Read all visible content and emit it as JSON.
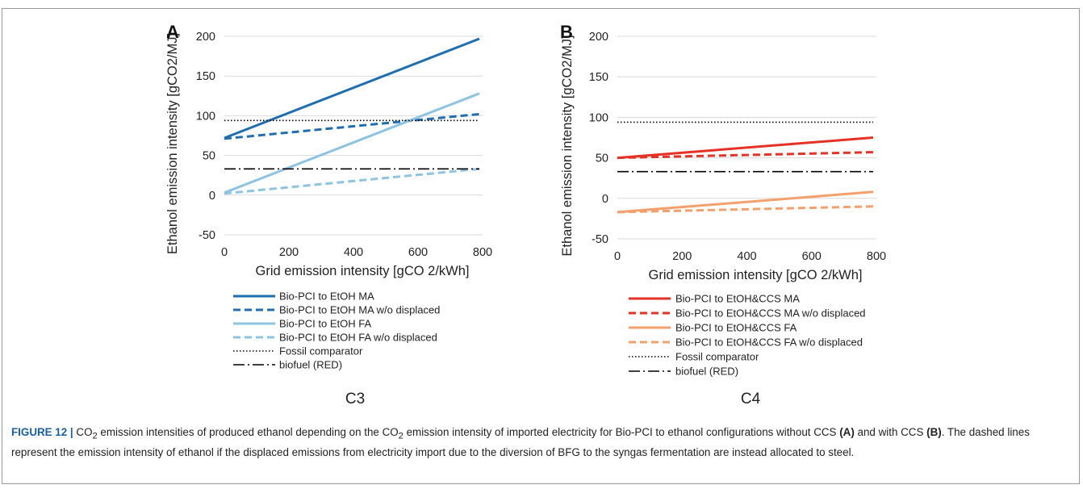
{
  "chart_data": [
    {
      "type": "line",
      "panel_letter": "A",
      "panel_label": "C3",
      "xlabel": "Grid emission intensity [gCO 2/kWh]",
      "ylabel": "Ethanol emission intensity [gCO2/MJ]",
      "xlim": [
        0,
        800
      ],
      "ylim": [
        -50,
        200
      ],
      "x_ticks": [
        "0",
        "200",
        "400",
        "600",
        "800"
      ],
      "y_ticks": [
        "-50",
        "0",
        "50",
        "100",
        "150",
        "200"
      ],
      "grid": "horizontal",
      "legend_position": "below",
      "series": [
        {
          "name": "Bio-PCI to EtOH MA",
          "color": "#1f6fb0",
          "style": "solid",
          "x": [
            0,
            790
          ],
          "y": [
            72,
            197
          ]
        },
        {
          "name": "Bio-PCI to EtOH MA w/o displaced",
          "color": "#1f6fb0",
          "style": "dashed",
          "x": [
            0,
            790
          ],
          "y": [
            71,
            102
          ]
        },
        {
          "name": "Bio-PCI to EtOH FA",
          "color": "#8cc4e2",
          "style": "solid",
          "x": [
            0,
            790
          ],
          "y": [
            3,
            128
          ]
        },
        {
          "name": "Bio-PCI to EtOH FA w/o displaced",
          "color": "#8cc4e2",
          "style": "dashed",
          "x": [
            0,
            790
          ],
          "y": [
            2,
            33
          ]
        },
        {
          "name": "Fossil comparator",
          "color": "#000000",
          "style": "dotted",
          "x": [
            0,
            790
          ],
          "y": [
            94,
            94
          ]
        },
        {
          "name": "biofuel  (RED)",
          "color": "#000000",
          "style": "dashdot",
          "x": [
            0,
            790
          ],
          "y": [
            33,
            33
          ]
        }
      ]
    },
    {
      "type": "line",
      "panel_letter": "B",
      "panel_label": "C4",
      "xlabel": "Grid emission intensity [gCO 2/kWh]",
      "ylabel": "Ethanol emission intensity [gCO2/MJ]",
      "xlim": [
        0,
        800
      ],
      "ylim": [
        -50,
        200
      ],
      "x_ticks": [
        "0",
        "200",
        "400",
        "600",
        "800"
      ],
      "y_ticks": [
        "-50",
        "0",
        "50",
        "100",
        "150",
        "200"
      ],
      "grid": "horizontal",
      "legend_position": "below",
      "series": [
        {
          "name": "Bio-PCI to EtOH&CCS MA",
          "color": "#e53224",
          "style": "solid",
          "x": [
            0,
            790
          ],
          "y": [
            50,
            75
          ]
        },
        {
          "name": "Bio-PCI to EtOH&CCS MA w/o displaced",
          "color": "#e53224",
          "style": "dashed",
          "x": [
            0,
            790
          ],
          "y": [
            50,
            57
          ]
        },
        {
          "name": "Bio-PCI to EtOH&CCS FA",
          "color": "#f4a06c",
          "style": "solid",
          "x": [
            0,
            790
          ],
          "y": [
            -17,
            8
          ]
        },
        {
          "name": "Bio-PCI to EtOH&CCS FA w/o displaced",
          "color": "#f4a06c",
          "style": "dashed",
          "x": [
            0,
            790
          ],
          "y": [
            -17,
            -10
          ]
        },
        {
          "name": "Fossil comparator",
          "color": "#000000",
          "style": "dotted",
          "x": [
            0,
            790
          ],
          "y": [
            94,
            94
          ]
        },
        {
          "name": "biofuel  (RED)",
          "color": "#000000",
          "style": "dashdot",
          "x": [
            0,
            790
          ],
          "y": [
            33,
            33
          ]
        }
      ]
    }
  ],
  "caption": {
    "label": "FIGURE 12 |",
    "t1": " CO",
    "sub1": "2",
    "t2": " emission intensities of produced ethanol depending on the CO",
    "sub2": "2",
    "t3": " emission intensity of imported electricity for Bio-PCI to ethanol configurations without CCS ",
    "b1": "(A)",
    "t4": " and with CCS ",
    "b2": "(B)",
    "t5": ". The dashed lines represent the emission intensity of ethanol if the displaced emissions from electricity import due to the diversion of BFG to the syngas fermentation are instead allocated to steel."
  }
}
